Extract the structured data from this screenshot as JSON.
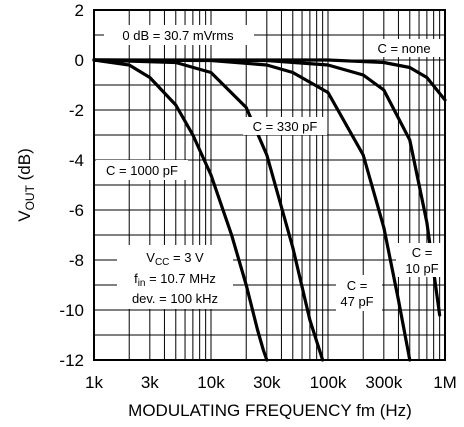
{
  "chart_data": {
    "type": "line",
    "xscale": "log",
    "xlim": [
      1000,
      1000000
    ],
    "ylim": [
      -12,
      2
    ],
    "grid": true,
    "xlabel": "MODULATING FREQUENCY fm (Hz)",
    "ylabel": {
      "main": "V",
      "sub": "OUT",
      "rest": " (dB)"
    },
    "x_ticks": [
      {
        "value": 1000,
        "label": "1k"
      },
      {
        "value": 3000,
        "label": "3k"
      },
      {
        "value": 10000,
        "label": "10k"
      },
      {
        "value": 30000,
        "label": "30k"
      },
      {
        "value": 100000,
        "label": "100k"
      },
      {
        "value": 300000,
        "label": "300k"
      },
      {
        "value": 1000000,
        "label": "1M"
      }
    ],
    "y_ticks": [
      {
        "value": 2,
        "label": "2"
      },
      {
        "value": 0,
        "label": "0"
      },
      {
        "value": -2,
        "label": "-2"
      },
      {
        "value": -4,
        "label": "-4"
      },
      {
        "value": -6,
        "label": "-6"
      },
      {
        "value": -8,
        "label": "-8"
      },
      {
        "value": -10,
        "label": "-10"
      },
      {
        "value": -12,
        "label": "-12"
      }
    ],
    "series": [
      {
        "name": "C = 1000 pF",
        "x": [
          1000,
          2000,
          3000,
          5000,
          7000,
          10000,
          15000,
          20000,
          25000,
          28000,
          30000
        ],
        "y": [
          0,
          -0.2,
          -0.7,
          -1.8,
          -3,
          -4.6,
          -7,
          -9,
          -10.8,
          -11.6,
          -12
        ]
      },
      {
        "name": "C = 330 pF",
        "x": [
          1000,
          5000,
          10000,
          20000,
          30000,
          50000,
          70000,
          90000
        ],
        "y": [
          0,
          -0.1,
          -0.5,
          -1.9,
          -3.8,
          -7.5,
          -10.4,
          -12
        ]
      },
      {
        "name": "C = 47 pF",
        "x": [
          1000,
          10000,
          30000,
          50000,
          100000,
          200000,
          300000,
          400000,
          500000
        ],
        "y": [
          0,
          -0.02,
          -0.2,
          -0.5,
          -1.3,
          -3.8,
          -6.7,
          -9.6,
          -12
        ]
      },
      {
        "name": "C = 10 pF",
        "x": [
          1000,
          30000,
          100000,
          200000,
          300000,
          500000,
          700000,
          900000
        ],
        "y": [
          0,
          -0.02,
          -0.2,
          -0.6,
          -1.2,
          -3.2,
          -6.5,
          -10.2
        ]
      },
      {
        "name": "C = none",
        "x": [
          1000,
          100000,
          300000,
          500000,
          700000,
          1000000
        ],
        "y": [
          0,
          0,
          -0.1,
          -0.3,
          -0.7,
          -1.6
        ]
      }
    ],
    "annotations": {
      "ref_level": "0 dB = 30.7 mVrms",
      "c_none": "C = none",
      "c_330": "C = 330 pF",
      "c_1000": "C = 1000 pF",
      "c_47_line1": "C =",
      "c_47_line2": "47 pF",
      "c_10_line1": "C =",
      "c_10_line2": "10 pF",
      "vcc_main": "V",
      "vcc_sub": "CC",
      "vcc_rest": " = 3 V",
      "fin_main": "f",
      "fin_sub": "in",
      "fin_rest": " = 10.7 MHz",
      "dev": "dev. = 100 kHz"
    },
    "colors": {
      "line": "#000000",
      "grid": "#000000",
      "background": "#ffffff"
    }
  }
}
